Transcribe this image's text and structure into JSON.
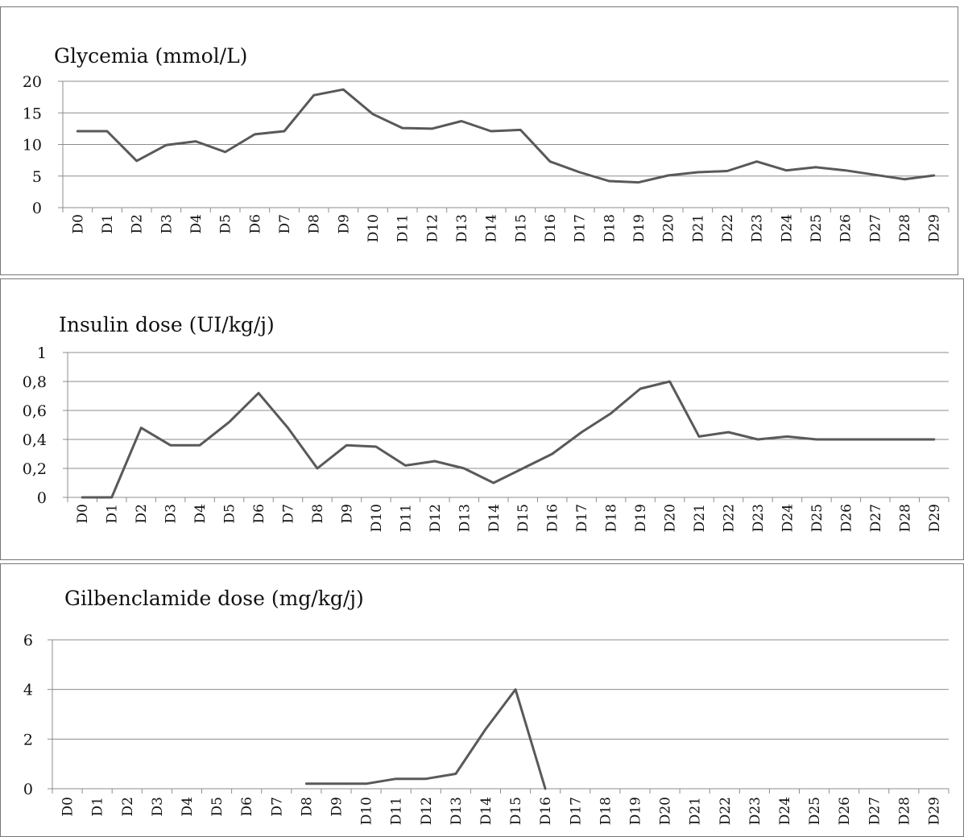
{
  "colors": {
    "line": "#595959",
    "grid": "#8c8c8c",
    "frame": "#777777",
    "text": "#111111"
  },
  "chart_data": [
    {
      "type": "line",
      "title": "Glycemia (mmol/L)",
      "categories": [
        "D0",
        "D1",
        "D2",
        "D3",
        "D4",
        "D5",
        "D6",
        "D7",
        "D8",
        "D9",
        "D10",
        "D11",
        "D12",
        "D13",
        "D14",
        "D15",
        "D16",
        "D17",
        "D18",
        "D19",
        "D20",
        "D21",
        "D22",
        "D23",
        "D24",
        "D25",
        "D26",
        "D27",
        "D28",
        "D29"
      ],
      "yticks": [
        "0",
        "5",
        "10",
        "15",
        "20"
      ],
      "ylim": [
        0,
        20
      ],
      "grid": true,
      "legend": "none",
      "series": [
        {
          "values": [
            12.1,
            12.1,
            7.4,
            9.9,
            10.5,
            8.8,
            11.6,
            12.1,
            17.8,
            18.7,
            14.8,
            12.6,
            12.5,
            13.7,
            12.1,
            12.3,
            7.3,
            5.6,
            4.2,
            4.0,
            5.1,
            5.6,
            5.8,
            7.3,
            5.9,
            6.4,
            5.9,
            5.2,
            4.5,
            5.1
          ]
        }
      ]
    },
    {
      "type": "line",
      "title": "Insulin dose (UI/kg/j)",
      "categories": [
        "D0",
        "D1",
        "D2",
        "D3",
        "D4",
        "D5",
        "D6",
        "D7",
        "D8",
        "D9",
        "D10",
        "D11",
        "D12",
        "D13",
        "D14",
        "D15",
        "D16",
        "D17",
        "D18",
        "D19",
        "D20",
        "D21",
        "D22",
        "D23",
        "D24",
        "D25",
        "D26",
        "D27",
        "D28",
        "D29"
      ],
      "yticks": [
        "0",
        "0,2",
        "0,4",
        "0,6",
        "0,8",
        "1"
      ],
      "ylim": [
        0,
        1
      ],
      "grid": true,
      "legend": "none",
      "series": [
        {
          "values": [
            0,
            0,
            0.48,
            0.36,
            0.36,
            0.52,
            0.72,
            0.48,
            0.2,
            0.36,
            0.35,
            0.22,
            0.25,
            0.2,
            0.1,
            0.2,
            0.3,
            0.45,
            0.58,
            0.75,
            0.8,
            0.42,
            0.45,
            0.4,
            0.42,
            0.4,
            0.4,
            0.4,
            0.4,
            0.4
          ]
        }
      ]
    },
    {
      "type": "line",
      "title": "Gilbenclamide dose (mg/kg/j)",
      "categories": [
        "D0",
        "D1",
        "D2",
        "D3",
        "D4",
        "D5",
        "D6",
        "D7",
        "D8",
        "D9",
        "D10",
        "D11",
        "D12",
        "D13",
        "D14",
        "D15",
        "D16",
        "D17",
        "D18",
        "D19",
        "D20",
        "D21",
        "D22",
        "D23",
        "D24",
        "D25",
        "D26",
        "D27",
        "D28",
        "D29"
      ],
      "yticks": [
        "0",
        "2",
        "4",
        "6"
      ],
      "ylim": [
        0,
        6
      ],
      "grid": true,
      "legend": "none",
      "series": [
        {
          "values": [
            null,
            null,
            null,
            null,
            null,
            null,
            null,
            null,
            0.2,
            0.2,
            0.2,
            0.4,
            0.4,
            0.6,
            2.4,
            4.0,
            0,
            null,
            null,
            null,
            null,
            null,
            null,
            null,
            null,
            null,
            null,
            null,
            null,
            null
          ]
        }
      ]
    }
  ]
}
